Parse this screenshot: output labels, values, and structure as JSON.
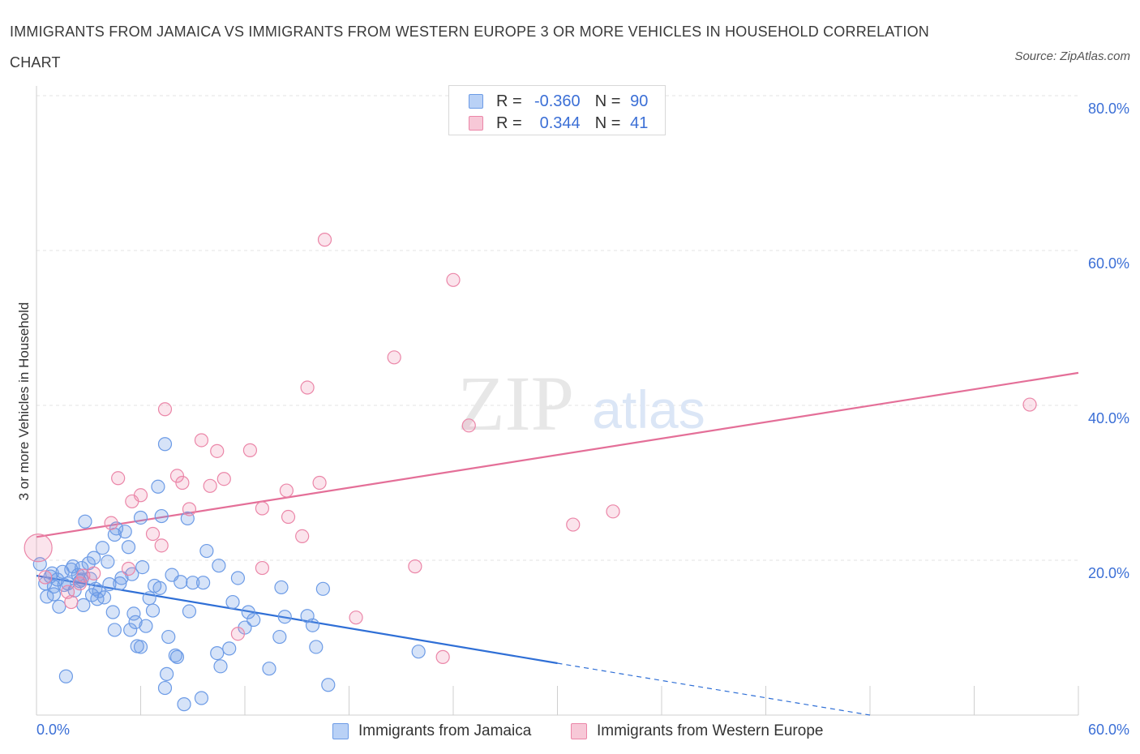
{
  "title": "IMMIGRANTS FROM JAMAICA VS IMMIGRANTS FROM WESTERN EUROPE 3 OR MORE VEHICLES IN HOUSEHOLD CORRELATION CHART",
  "source": "Source: ZipAtlas.com",
  "watermark": {
    "zip": "ZIP",
    "atlas": "atlas"
  },
  "legend": {
    "rows": [
      {
        "r_label": "R =",
        "r_value": "-0.360",
        "n_label": "N =",
        "n_value": "90",
        "color": "#6c9be6"
      },
      {
        "r_label": "R =",
        "r_value": "0.344",
        "n_label": "N =",
        "n_value": "41",
        "color": "#eb86a8"
      }
    ]
  },
  "chart_data": {
    "type": "scatter",
    "title": "IMMIGRANTS FROM JAMAICA VS IMMIGRANTS FROM WESTERN EUROPE 3 OR MORE VEHICLES IN HOUSEHOLD CORRELATION CHART",
    "xlabel": "",
    "ylabel": "3 or more Vehicles in Household",
    "xlim": [
      0,
      60
    ],
    "ylim": [
      0,
      80
    ],
    "x_tick_labels": [
      "0.0%",
      "60.0%"
    ],
    "y_tick_labels": [
      "20.0%",
      "40.0%",
      "60.0%",
      "80.0%"
    ],
    "grid": true,
    "legend_position": "bottom",
    "series": [
      {
        "name": "Immigrants from Jamaica",
        "color": "#6c9be6",
        "trend": {
          "x_start": 0,
          "y_start": 18.0,
          "x_end": 30.0,
          "y_end": 6.7,
          "dashed_to_x": 48.0,
          "dashed_to_y": 0.0
        },
        "points": [
          [
            0.2,
            19.5
          ],
          [
            0.5,
            17.0
          ],
          [
            0.6,
            15.3
          ],
          [
            0.8,
            17.9
          ],
          [
            0.9,
            18.3
          ],
          [
            1.0,
            15.6
          ],
          [
            1.2,
            17.5
          ],
          [
            1.3,
            14.0
          ],
          [
            1.5,
            18.5
          ],
          [
            1.6,
            16.8
          ],
          [
            1.8,
            17.0
          ],
          [
            2.0,
            18.8
          ],
          [
            2.1,
            19.2
          ],
          [
            2.2,
            16.1
          ],
          [
            2.4,
            18.1
          ],
          [
            2.5,
            17.3
          ],
          [
            2.6,
            19.0
          ],
          [
            2.7,
            14.2
          ],
          [
            2.8,
            25.0
          ],
          [
            3.0,
            19.6
          ],
          [
            3.1,
            17.6
          ],
          [
            3.2,
            15.5
          ],
          [
            3.3,
            20.3
          ],
          [
            3.4,
            16.3
          ],
          [
            3.5,
            15.0
          ],
          [
            3.6,
            16.0
          ],
          [
            3.8,
            21.6
          ],
          [
            3.9,
            15.2
          ],
          [
            4.1,
            19.8
          ],
          [
            4.2,
            16.9
          ],
          [
            4.4,
            13.3
          ],
          [
            4.5,
            23.3
          ],
          [
            4.6,
            24.1
          ],
          [
            4.8,
            17.0
          ],
          [
            4.9,
            17.7
          ],
          [
            5.1,
            23.7
          ],
          [
            5.3,
            21.7
          ],
          [
            5.5,
            18.2
          ],
          [
            5.6,
            13.1
          ],
          [
            5.7,
            12.0
          ],
          [
            5.8,
            8.9
          ],
          [
            6.0,
            25.5
          ],
          [
            6.1,
            19.1
          ],
          [
            6.3,
            11.5
          ],
          [
            6.5,
            15.1
          ],
          [
            6.7,
            13.5
          ],
          [
            6.8,
            16.7
          ],
          [
            7.0,
            29.5
          ],
          [
            7.1,
            16.4
          ],
          [
            7.2,
            25.7
          ],
          [
            7.6,
            10.1
          ],
          [
            7.8,
            18.1
          ],
          [
            8.0,
            7.7
          ],
          [
            8.1,
            7.5
          ],
          [
            8.3,
            17.2
          ],
          [
            8.5,
            1.4
          ],
          [
            8.7,
            25.4
          ],
          [
            8.8,
            13.4
          ],
          [
            9.0,
            17.1
          ],
          [
            9.6,
            17.1
          ],
          [
            9.8,
            21.2
          ],
          [
            10.5,
            19.3
          ],
          [
            10.6,
            6.3
          ],
          [
            11.1,
            8.6
          ],
          [
            11.3,
            14.6
          ],
          [
            11.6,
            17.7
          ],
          [
            12.0,
            11.3
          ],
          [
            12.2,
            13.3
          ],
          [
            12.5,
            12.3
          ],
          [
            13.4,
            6.0
          ],
          [
            14.0,
            10.1
          ],
          [
            14.1,
            16.5
          ],
          [
            14.3,
            12.7
          ],
          [
            15.6,
            12.8
          ],
          [
            15.9,
            11.6
          ],
          [
            16.1,
            8.8
          ],
          [
            16.5,
            16.3
          ],
          [
            16.8,
            3.9
          ],
          [
            22.0,
            8.2
          ],
          [
            7.4,
            35.0
          ],
          [
            1.7,
            5.0
          ],
          [
            5.4,
            11.0
          ],
          [
            6.0,
            8.8
          ],
          [
            7.5,
            5.3
          ],
          [
            7.4,
            3.5
          ],
          [
            9.5,
            2.2
          ],
          [
            10.4,
            8.0
          ],
          [
            4.5,
            11.0
          ],
          [
            2.6,
            17.5
          ],
          [
            1.0,
            16.6
          ]
        ]
      },
      {
        "name": "Immigrants from Western Europe",
        "color": "#eb86a8",
        "trend": {
          "x_start": 0,
          "y_start": 23.0,
          "x_end": 60.0,
          "y_end": 44.2
        },
        "points": [
          [
            0.1,
            21.6
          ],
          [
            0.5,
            17.8
          ],
          [
            1.8,
            15.9
          ],
          [
            2.0,
            14.6
          ],
          [
            2.5,
            17.0
          ],
          [
            2.7,
            18.0
          ],
          [
            3.3,
            18.3
          ],
          [
            4.3,
            24.8
          ],
          [
            4.7,
            30.6
          ],
          [
            5.5,
            27.6
          ],
          [
            6.0,
            28.4
          ],
          [
            6.7,
            23.4
          ],
          [
            7.2,
            21.9
          ],
          [
            7.4,
            39.5
          ],
          [
            8.1,
            30.9
          ],
          [
            8.4,
            30.0
          ],
          [
            8.8,
            26.6
          ],
          [
            9.5,
            35.5
          ],
          [
            10.0,
            29.6
          ],
          [
            10.4,
            34.1
          ],
          [
            10.8,
            30.5
          ],
          [
            11.6,
            10.5
          ],
          [
            12.3,
            34.2
          ],
          [
            13.0,
            26.7
          ],
          [
            14.4,
            29.0
          ],
          [
            14.5,
            25.6
          ],
          [
            15.3,
            23.1
          ],
          [
            15.6,
            42.3
          ],
          [
            16.3,
            30.0
          ],
          [
            16.6,
            61.4
          ],
          [
            18.4,
            12.6
          ],
          [
            20.6,
            46.2
          ],
          [
            21.8,
            19.2
          ],
          [
            23.4,
            7.5
          ],
          [
            24.0,
            56.2
          ],
          [
            24.9,
            37.4
          ],
          [
            30.9,
            24.6
          ],
          [
            33.2,
            26.3
          ],
          [
            57.2,
            40.1
          ],
          [
            5.3,
            18.9
          ],
          [
            13.0,
            19.0
          ]
        ]
      }
    ]
  },
  "bottom_legend": [
    "Immigrants from Jamaica",
    "Immigrants from Western Europe"
  ]
}
